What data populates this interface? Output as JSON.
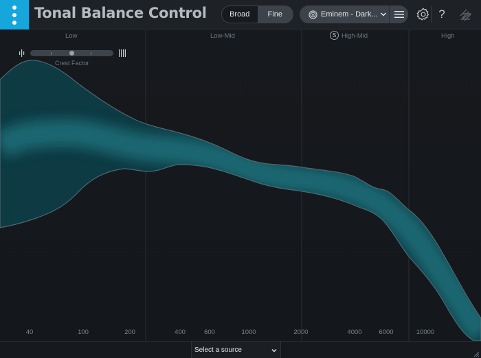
{
  "app": {
    "title": "Tonal Balance Control",
    "menu_icon": "vertical-dots-icon"
  },
  "header": {
    "modes": [
      {
        "label": "Broad",
        "selected": true
      },
      {
        "label": "Fine",
        "selected": false
      }
    ],
    "preset": {
      "icon": "target-icon",
      "value": "Eminem - Dark...",
      "dropdown_icon": "chevron-down-icon",
      "list_icon": "hamburger-icon"
    },
    "settings_icon": "gear-icon",
    "help_label": "?",
    "logo_icon": "izotope-logo-icon"
  },
  "graph": {
    "bands": [
      {
        "label": "Low"
      },
      {
        "label": "Low-Mid"
      },
      {
        "label": "High-Mid",
        "badge": "S"
      },
      {
        "label": "High"
      }
    ],
    "frequencies": [
      "40",
      "100",
      "200",
      "400",
      "600",
      "1000",
      "2000",
      "4000",
      "6000",
      "10000"
    ],
    "crest_factor": {
      "label": "Crest Factor",
      "level": 0.5
    },
    "colors": {
      "band_fill": "#0f4650",
      "band_core": "#165863",
      "band_edge": "#4e6a71"
    }
  },
  "footer": {
    "source_select": {
      "value": "Select a source"
    }
  }
}
